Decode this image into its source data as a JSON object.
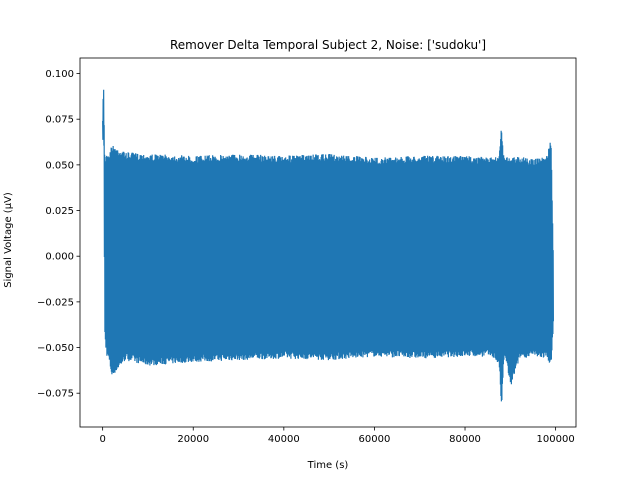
{
  "chart_data": {
    "type": "line",
    "title": "Remover Delta Temporal Subject 2, Noise: ['sudoku']",
    "xlabel": "Time (s)",
    "ylabel": "Signal Voltage (µV)",
    "xlim": [
      -5000,
      104500
    ],
    "ylim": [
      -0.0935,
      0.1085
    ],
    "x_ticks": [
      0,
      20000,
      40000,
      60000,
      80000,
      100000
    ],
    "x_tick_labels": [
      "0",
      "20000",
      "40000",
      "60000",
      "80000",
      "100000"
    ],
    "y_ticks": [
      -0.075,
      -0.05,
      -0.025,
      0.0,
      0.025,
      0.05,
      0.075,
      0.1
    ],
    "y_tick_labels": [
      "−0.075",
      "−0.050",
      "−0.025",
      "0.000",
      "0.025",
      "0.050",
      "0.075",
      "0.100"
    ],
    "grid": false,
    "line_color": "#1f77b4",
    "series": [
      {
        "x": [
          0,
          200,
          400,
          600,
          900,
          1200,
          2000,
          5000,
          10000,
          20000,
          30000,
          40000,
          50000,
          60000,
          70000,
          80000,
          86000,
          87500,
          88000,
          88500,
          89000,
          90000,
          92000,
          95000,
          98000,
          99000,
          99500
        ],
        "envelope_max": [
          0.074,
          0.098,
          0.06,
          0.053,
          0.058,
          0.055,
          0.061,
          0.057,
          0.056,
          0.055,
          0.056,
          0.055,
          0.056,
          0.054,
          0.055,
          0.055,
          0.054,
          0.055,
          0.072,
          0.056,
          0.055,
          0.054,
          0.055,
          0.053,
          0.055,
          0.064,
          0.0
        ],
        "envelope_min": [
          0.06,
          0.07,
          -0.042,
          -0.05,
          -0.055,
          -0.056,
          -0.066,
          -0.057,
          -0.06,
          -0.058,
          -0.057,
          -0.056,
          -0.057,
          -0.055,
          -0.056,
          -0.055,
          -0.055,
          -0.06,
          -0.084,
          -0.058,
          -0.057,
          -0.072,
          -0.056,
          -0.055,
          -0.056,
          -0.06,
          -0.035
        ]
      }
    ]
  }
}
